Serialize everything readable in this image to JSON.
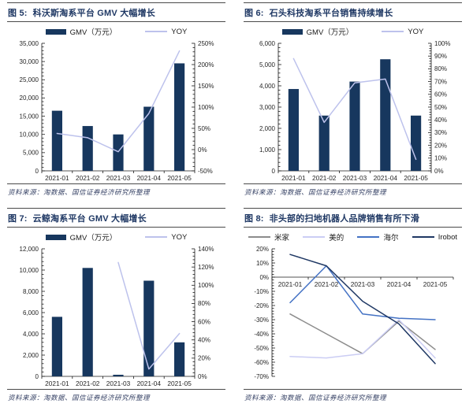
{
  "page": {
    "background": "#ffffff"
  },
  "colors": {
    "bar_navy": "#17375E",
    "yoy_lavender": "#BDC2EC",
    "title_navy": "#1F3864",
    "rule_gray": "#4a4a4a",
    "mijia_gray": "#8C8C8C",
    "meidi_lavender": "#CBCDF4",
    "haier_blue": "#4472C4",
    "irobot_navy": "#1F3864"
  },
  "panels": [
    {
      "fig_label": "图 5:",
      "title": "科沃斯淘系平台 GMV 大幅增长",
      "source": "资料来源：淘数据、国信证券经济研究所整理"
    },
    {
      "fig_label": "图 6:",
      "title": "石头科技淘系平台销售持续增长",
      "source": "资料来源：淘数据、国信证券经济研究所整理"
    },
    {
      "fig_label": "图 7:",
      "title": "云鲸淘系平台 GMV 大幅增长",
      "source": "资料来源：淘数据、国信证券经济研究所整理"
    },
    {
      "fig_label": "图 8:",
      "title": "非头部的扫地机器人品牌销售有所下滑",
      "source": "资料来源：淘数据、国信证券经济研究所整理"
    }
  ],
  "chart_data": [
    {
      "type": "bar",
      "title": "科沃斯淘系平台 GMV 大幅增长",
      "categories": [
        "2021-01",
        "2021-02",
        "2021-03",
        "2021-04",
        "2021-05"
      ],
      "series": [
        {
          "name": "GMV（万元）",
          "kind": "bar",
          "axis": "left",
          "color": "#17375E",
          "values": [
            16500,
            12300,
            10000,
            17600,
            29500
          ]
        },
        {
          "name": "YOY",
          "kind": "line",
          "axis": "right",
          "color": "#BDC2EC",
          "values": [
            38,
            28,
            -5,
            85,
            232
          ]
        }
      ],
      "left_axis": {
        "min": 0,
        "max": 35000,
        "step": 5000,
        "format": "thousands"
      },
      "right_axis": {
        "min": -50,
        "max": 250,
        "step": 50,
        "format": "percent"
      },
      "legend_position": "top",
      "grid": false
    },
    {
      "type": "bar",
      "title": "石头科技淘系平台销售持续增长",
      "categories": [
        "2021-01",
        "2021-02",
        "2021-03",
        "2021-04",
        "2021-05"
      ],
      "series": [
        {
          "name": "GMV（万元）",
          "kind": "bar",
          "axis": "left",
          "color": "#17375E",
          "values": [
            3850,
            2600,
            4200,
            5250,
            2600
          ]
        },
        {
          "name": "YOY",
          "kind": "line",
          "axis": "right",
          "color": "#BDC2EC",
          "values": [
            88,
            38,
            69,
            72,
            9
          ]
        }
      ],
      "left_axis": {
        "min": 0,
        "max": 6000,
        "step": 1000,
        "format": "thousands"
      },
      "right_axis": {
        "min": 0,
        "max": 100,
        "step": 10,
        "format": "percent"
      },
      "legend_position": "top",
      "grid": false
    },
    {
      "type": "bar",
      "title": "云鲸淘系平台 GMV 大幅增长",
      "categories": [
        "2021-01",
        "2021-02",
        "2021-03",
        "2021-04",
        "2021-05"
      ],
      "series": [
        {
          "name": "GMV（万元）",
          "kind": "bar",
          "axis": "left",
          "color": "#17375E",
          "values": [
            5600,
            10200,
            150,
            9000,
            3200
          ]
        },
        {
          "name": "YOY",
          "kind": "line",
          "axis": "right",
          "color": "#BDC2EC",
          "values": [
            null,
            null,
            125,
            8,
            47
          ]
        }
      ],
      "left_axis": {
        "min": 0,
        "max": 12000,
        "step": 2000,
        "format": "thousands"
      },
      "right_axis": {
        "min": 0,
        "max": 140,
        "step": 20,
        "format": "percent"
      },
      "legend_position": "top",
      "grid": false
    },
    {
      "type": "line",
      "title": "非头部的扫地机器人品牌销售有所下滑",
      "categories": [
        "2021-01",
        "2021-02",
        "2021-03",
        "2021-04",
        "2021-05"
      ],
      "series": [
        {
          "name": "米家",
          "kind": "line",
          "axis": "left",
          "color": "#8C8C8C",
          "values": [
            -26,
            -40,
            -54,
            -31,
            -51
          ]
        },
        {
          "name": "美的",
          "kind": "line",
          "axis": "left",
          "color": "#CBCDF4",
          "values": [
            -56,
            -57,
            -54,
            -30,
            -57
          ]
        },
        {
          "name": "海尔",
          "kind": "line",
          "axis": "left",
          "color": "#4472C4",
          "values": [
            -18,
            8,
            -26,
            -29,
            -30
          ]
        },
        {
          "name": "Irobot",
          "kind": "line",
          "axis": "left",
          "color": "#1F3864",
          "values": [
            16,
            8,
            -17,
            -33,
            -61
          ]
        }
      ],
      "left_axis": {
        "min": -70,
        "max": 20,
        "step": 10,
        "format": "percent"
      },
      "right_axis": null,
      "x_axis_at": 0,
      "legend_position": "top",
      "grid": false
    }
  ]
}
